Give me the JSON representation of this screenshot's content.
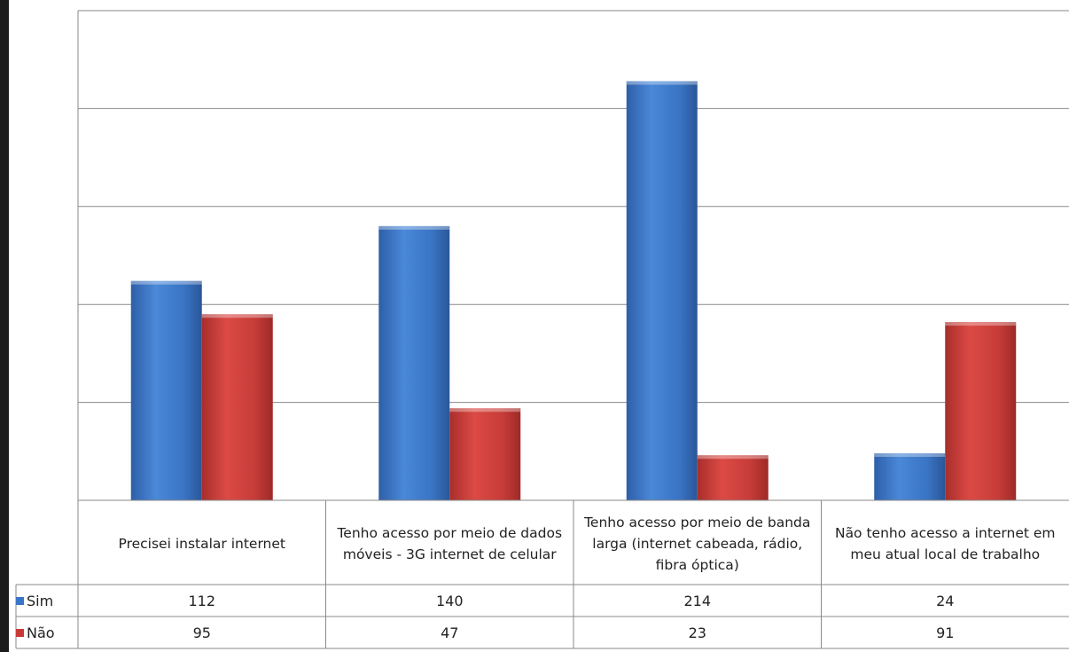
{
  "chart_data": {
    "type": "bar",
    "categories": [
      "Precisei instalar internet",
      "Tenho acesso por meio de dados móveis - 3G internet de celular",
      "Tenho acesso por meio de banda larga (internet cabeada, rádio, fibra óptica)",
      "Não tenho acesso a internet em meu atual local de trabalho"
    ],
    "series": [
      {
        "name": "Sim",
        "color": "#3a76c8",
        "values": [
          112,
          140,
          214,
          24
        ]
      },
      {
        "name": "Não",
        "color": "#c93a36",
        "values": [
          95,
          47,
          23,
          91
        ]
      }
    ],
    "ylim": [
      0,
      250
    ],
    "grid": true,
    "legend": "data-table",
    "data_table": true
  }
}
